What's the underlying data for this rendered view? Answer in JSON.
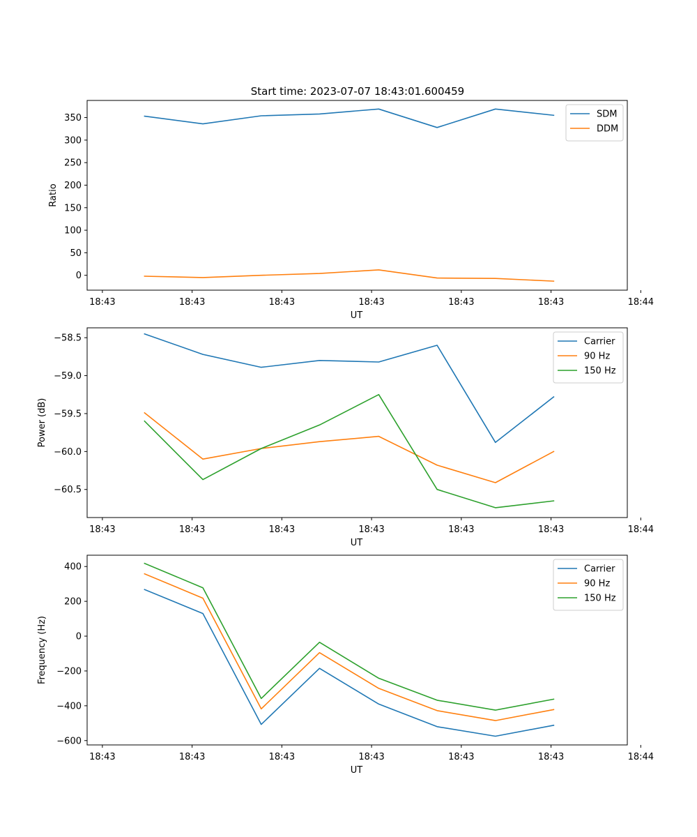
{
  "figure": {
    "title": "Start time: 2023-07-07 18:43:01.600459"
  },
  "chart_data": [
    {
      "type": "line",
      "title": "Start time: 2023-07-07 18:43:01.600459",
      "xlabel": "UT",
      "ylabel": "Ratio",
      "xlim": [
        -0.17,
        5.85
      ],
      "ylim": [
        -33,
        388
      ],
      "x_ticks": [
        0,
        1,
        2,
        3,
        4,
        5,
        6
      ],
      "x_tick_labels": [
        "18:43",
        "18:43",
        "18:43",
        "18:43",
        "18:43",
        "18:43",
        "18:44"
      ],
      "y_ticks": [
        0,
        50,
        100,
        150,
        200,
        250,
        300,
        350
      ],
      "y_tick_labels": [
        "0",
        "50",
        "100",
        "150",
        "200",
        "250",
        "300",
        "350"
      ],
      "legend": "top-right",
      "x": [
        0.47,
        1.12,
        1.77,
        2.42,
        3.08,
        3.73,
        4.38,
        5.03
      ],
      "series": [
        {
          "name": "SDM",
          "color": "#1f77b4",
          "values": [
            353,
            336,
            354,
            358,
            369,
            328,
            369,
            355
          ]
        },
        {
          "name": "DDM",
          "color": "#ff7f0e",
          "values": [
            -2,
            -5,
            0,
            4,
            12,
            -6,
            -7,
            -13
          ]
        }
      ]
    },
    {
      "type": "line",
      "title": "",
      "xlabel": "UT",
      "ylabel": "Power (dB)",
      "xlim": [
        -0.17,
        5.85
      ],
      "ylim": [
        -60.87,
        -58.37
      ],
      "x_ticks": [
        0,
        1,
        2,
        3,
        4,
        5,
        6
      ],
      "x_tick_labels": [
        "18:43",
        "18:43",
        "18:43",
        "18:43",
        "18:43",
        "18:43",
        "18:44"
      ],
      "y_ticks": [
        -60.5,
        -60.0,
        -59.5,
        -59.0,
        -58.5
      ],
      "y_tick_labels": [
        "−60.5",
        "−60.0",
        "−59.5",
        "−59.0",
        "−58.5"
      ],
      "legend": "top-right",
      "x": [
        0.47,
        1.12,
        1.77,
        2.42,
        3.08,
        3.73,
        4.38,
        5.03
      ],
      "series": [
        {
          "name": "Carrier",
          "color": "#1f77b4",
          "values": [
            -58.45,
            -58.72,
            -58.89,
            -58.8,
            -58.82,
            -58.6,
            -59.88,
            -59.28
          ]
        },
        {
          "name": "90 Hz",
          "color": "#ff7f0e",
          "values": [
            -59.49,
            -60.1,
            -59.96,
            -59.87,
            -59.8,
            -60.18,
            -60.41,
            -60.0
          ]
        },
        {
          "name": "150 Hz",
          "color": "#2ca02c",
          "values": [
            -59.6,
            -60.37,
            -59.96,
            -59.65,
            -59.25,
            -60.5,
            -60.74,
            -60.65
          ]
        }
      ]
    },
    {
      "type": "line",
      "title": "",
      "xlabel": "UT",
      "ylabel": "Frequency (Hz)",
      "xlim": [
        -0.17,
        5.85
      ],
      "ylim": [
        -625,
        465
      ],
      "x_ticks": [
        0,
        1,
        2,
        3,
        4,
        5,
        6
      ],
      "x_tick_labels": [
        "18:43",
        "18:43",
        "18:43",
        "18:43",
        "18:43",
        "18:43",
        "18:44"
      ],
      "y_ticks": [
        -600,
        -400,
        -200,
        0,
        200,
        400
      ],
      "y_tick_labels": [
        "−600",
        "−400",
        "−200",
        "0",
        "200",
        "400"
      ],
      "legend": "top-right",
      "x": [
        0.47,
        1.12,
        1.77,
        2.42,
        3.08,
        3.73,
        4.38,
        5.03
      ],
      "series": [
        {
          "name": "Carrier",
          "color": "#1f77b4",
          "values": [
            268,
            130,
            -507,
            -185,
            -390,
            -520,
            -575,
            -512
          ]
        },
        {
          "name": "90 Hz",
          "color": "#ff7f0e",
          "values": [
            358,
            218,
            -418,
            -95,
            -300,
            -428,
            -485,
            -422
          ]
        },
        {
          "name": "150 Hz",
          "color": "#2ca02c",
          "values": [
            418,
            278,
            -358,
            -35,
            -242,
            -368,
            -425,
            -362
          ]
        }
      ]
    }
  ]
}
